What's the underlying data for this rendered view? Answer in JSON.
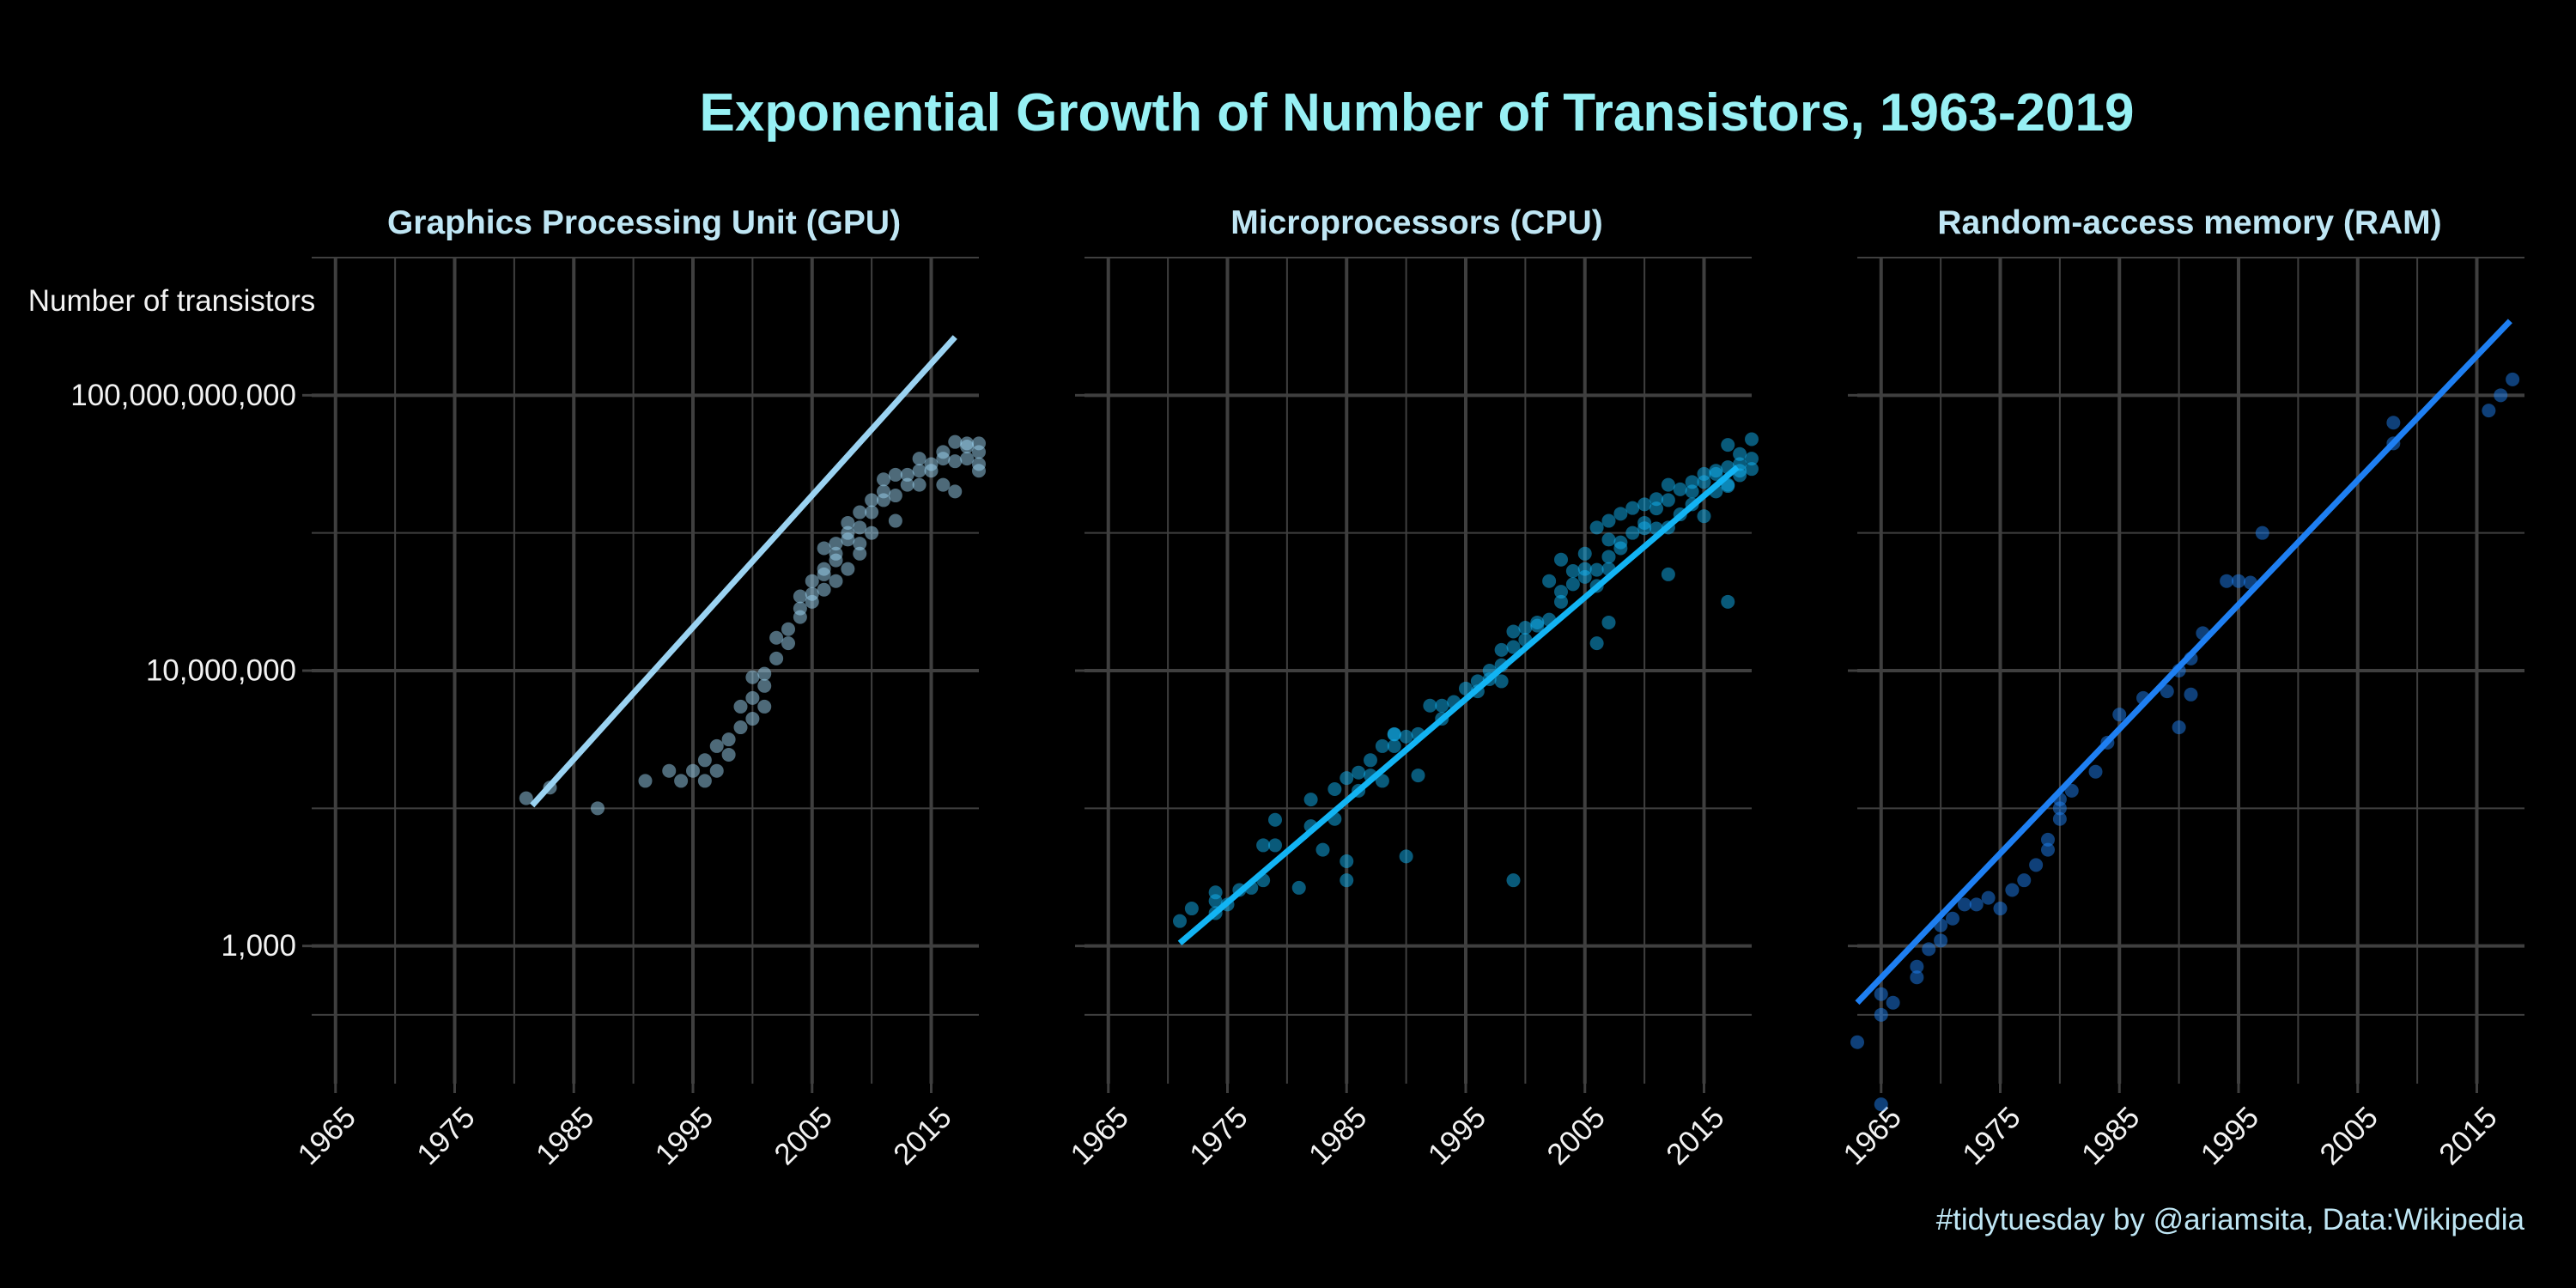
{
  "title": "Exponential Growth of Number of Transistors, 1963-2019",
  "ylabel": "Number of transistors",
  "caption": "#tidytuesday by @ariamsita, Data:Wikipedia",
  "colors": {
    "background": "#000000",
    "grid": "#3F3F3F",
    "title": "#97F0F4",
    "panel_title": "#BFE6F4",
    "axis_text": "#F2F2F2",
    "gpu": "#9BD3F2",
    "cpu": "#12B4F4",
    "ram": "#1E7FF2"
  },
  "chart_data": [
    {
      "type": "scatter",
      "title": "Graphics Processing Unit (GPU)",
      "xlabel": "",
      "ylabel": "Number of transistors",
      "y_scale": "log10",
      "xlim": [
        1963,
        2019
      ],
      "ylim": [
        10,
        10000000000000
      ],
      "x_ticks": [
        1965,
        1975,
        1985,
        1995,
        2005,
        2015
      ],
      "y_ticks": [
        1000,
        10000000,
        100000000000
      ],
      "y_tick_labels": [
        "1,000",
        "10,000,000",
        "100,000,000,000"
      ],
      "grid": true,
      "color": "#9BD3F2",
      "trend_line": {
        "x": [
          1981.5,
          2017.0
        ],
        "y": [
          110000,
          700000000000
        ]
      },
      "points": [
        [
          1981,
          140000
        ],
        [
          1983,
          200000
        ],
        [
          1987,
          100000
        ],
        [
          1991,
          250000
        ],
        [
          1993,
          350000
        ],
        [
          1994,
          250000
        ],
        [
          1995,
          350000
        ],
        [
          1996,
          500000
        ],
        [
          1996,
          250000
        ],
        [
          1997,
          800000
        ],
        [
          1997,
          350000
        ],
        [
          1998,
          1000000
        ],
        [
          1998,
          600000
        ],
        [
          1999,
          1500000
        ],
        [
          1999,
          3000000
        ],
        [
          2000,
          4000000
        ],
        [
          2000,
          8000000
        ],
        [
          2000,
          2000000
        ],
        [
          2001,
          9000000
        ],
        [
          2001,
          6000000
        ],
        [
          2001,
          3000000
        ],
        [
          2002,
          15000000
        ],
        [
          2002,
          30000000
        ],
        [
          2003,
          40000000
        ],
        [
          2003,
          25000000
        ],
        [
          2004,
          60000000
        ],
        [
          2004,
          120000000
        ],
        [
          2004,
          80000000
        ],
        [
          2005,
          200000000
        ],
        [
          2005,
          130000000
        ],
        [
          2005,
          100000000
        ],
        [
          2006,
          300000000
        ],
        [
          2006,
          600000000
        ],
        [
          2006,
          250000000
        ],
        [
          2006,
          150000000
        ],
        [
          2007,
          700000000
        ],
        [
          2007,
          500000000
        ],
        [
          2007,
          400000000
        ],
        [
          2007,
          200000000
        ],
        [
          2008,
          1000000000
        ],
        [
          2008,
          1400000000
        ],
        [
          2008,
          800000000
        ],
        [
          2008,
          300000000
        ],
        [
          2009,
          2000000000
        ],
        [
          2009,
          700000000
        ],
        [
          2009,
          500000000
        ],
        [
          2009,
          1200000000
        ],
        [
          2010,
          3000000000
        ],
        [
          2010,
          2000000000
        ],
        [
          2010,
          1000000000
        ],
        [
          2011,
          4000000000
        ],
        [
          2011,
          3000000000
        ],
        [
          2011,
          6000000000
        ],
        [
          2012,
          7000000000
        ],
        [
          2012,
          3500000000
        ],
        [
          2012,
          1500000000
        ],
        [
          2013,
          5000000000
        ],
        [
          2013,
          7000000000
        ],
        [
          2014,
          8000000000
        ],
        [
          2014,
          12000000000
        ],
        [
          2014,
          5000000000
        ],
        [
          2015,
          10000000000
        ],
        [
          2015,
          8000000000
        ],
        [
          2016,
          15000000000
        ],
        [
          2016,
          12000000000
        ],
        [
          2016,
          5000000000
        ],
        [
          2017,
          21000000000
        ],
        [
          2017,
          11000000000
        ],
        [
          2017,
          4000000000
        ],
        [
          2018,
          20000000000
        ],
        [
          2018,
          12000000000
        ],
        [
          2018,
          18000000000
        ],
        [
          2019,
          10000000000
        ],
        [
          2019,
          15000000000
        ],
        [
          2019,
          8000000000
        ],
        [
          2019,
          20000000000
        ]
      ]
    },
    {
      "type": "scatter",
      "title": "Microprocessors (CPU)",
      "xlabel": "",
      "ylabel": "",
      "y_scale": "log10",
      "xlim": [
        1963,
        2019
      ],
      "ylim": [
        10,
        10000000000000
      ],
      "x_ticks": [
        1965,
        1975,
        1985,
        1995,
        2005,
        2015
      ],
      "y_ticks": [
        1000,
        10000000,
        100000000000
      ],
      "grid": true,
      "color": "#12B4F4",
      "trend_line": {
        "x": [
          1971.0,
          2017.8
        ],
        "y": [
          1100,
          9000000000
        ]
      },
      "points": [
        [
          1971,
          2300
        ],
        [
          1972,
          3500
        ],
        [
          1974,
          4500
        ],
        [
          1974,
          6000
        ],
        [
          1974,
          3000
        ],
        [
          1975,
          4000
        ],
        [
          1976,
          6500
        ],
        [
          1977,
          7000
        ],
        [
          1978,
          9000
        ],
        [
          1978,
          29000
        ],
        [
          1979,
          29000
        ],
        [
          1979,
          68000
        ],
        [
          1981,
          7000
        ],
        [
          1982,
          55000
        ],
        [
          1982,
          134000
        ],
        [
          1983,
          25000
        ],
        [
          1984,
          190000
        ],
        [
          1984,
          70000
        ],
        [
          1985,
          275000
        ],
        [
          1985,
          9000
        ],
        [
          1985,
          17000
        ],
        [
          1986,
          180000
        ],
        [
          1986,
          330000
        ],
        [
          1987,
          500000
        ],
        [
          1987,
          300000
        ],
        [
          1988,
          250000
        ],
        [
          1988,
          800000
        ],
        [
          1989,
          1200000
        ],
        [
          1989,
          800000
        ],
        [
          1989,
          1180000
        ],
        [
          1990,
          20000
        ],
        [
          1990,
          1100000
        ],
        [
          1991,
          1200000
        ],
        [
          1991,
          300000
        ],
        [
          1992,
          3100000
        ],
        [
          1993,
          3100000
        ],
        [
          1993,
          2000000
        ],
        [
          1994,
          3500000
        ],
        [
          1995,
          5500000
        ],
        [
          1996,
          7000000
        ],
        [
          1996,
          5000000
        ],
        [
          1997,
          10000000
        ],
        [
          1997,
          7500000
        ],
        [
          1998,
          7000000
        ],
        [
          1998,
          20000000
        ],
        [
          1998,
          12000000
        ],
        [
          1999,
          37000000
        ],
        [
          1999,
          9000
        ],
        [
          1999,
          22000000
        ],
        [
          2000,
          42000000
        ],
        [
          2000,
          28000000
        ],
        [
          2001,
          45000000
        ],
        [
          2001,
          50000000
        ],
        [
          2002,
          200000000
        ],
        [
          2002,
          55000000
        ],
        [
          2003,
          410000000
        ],
        [
          2003,
          100000000
        ],
        [
          2003,
          140000000
        ],
        [
          2004,
          180000000
        ],
        [
          2004,
          280000000
        ],
        [
          2005,
          230000000
        ],
        [
          2005,
          300000000
        ],
        [
          2005,
          500000000
        ],
        [
          2006,
          291000000
        ],
        [
          2006,
          1200000000
        ],
        [
          2006,
          170000000
        ],
        [
          2006,
          25000000
        ],
        [
          2007,
          800000000
        ],
        [
          2007,
          450000000
        ],
        [
          2007,
          1500000000
        ],
        [
          2007,
          50000000
        ],
        [
          2007,
          300000000
        ],
        [
          2008,
          1900000000
        ],
        [
          2008,
          730000000
        ],
        [
          2008,
          600000000
        ],
        [
          2009,
          1000000000
        ],
        [
          2009,
          2300000000
        ],
        [
          2010,
          1170000000
        ],
        [
          2010,
          1400000000
        ],
        [
          2010,
          2600000000
        ],
        [
          2011,
          2270000000
        ],
        [
          2011,
          1160000000
        ],
        [
          2011,
          3100000000
        ],
        [
          2012,
          1200000000
        ],
        [
          2012,
          3000000000
        ],
        [
          2012,
          5000000000
        ],
        [
          2012,
          250000000
        ],
        [
          2013,
          1860000000
        ],
        [
          2013,
          4300000000
        ],
        [
          2014,
          2600000000
        ],
        [
          2014,
          5500000000
        ],
        [
          2014,
          4000000000
        ],
        [
          2015,
          1750000000
        ],
        [
          2015,
          5500000000
        ],
        [
          2015,
          7200000000
        ],
        [
          2016,
          7200000000
        ],
        [
          2016,
          4000000000
        ],
        [
          2016,
          8000000000
        ],
        [
          2017,
          4800000000
        ],
        [
          2017,
          9000000000
        ],
        [
          2017,
          19000000000
        ],
        [
          2017,
          5000000000
        ],
        [
          2017,
          100000000
        ],
        [
          2018,
          8000000000
        ],
        [
          2018,
          10000000000
        ],
        [
          2018,
          6900000000
        ],
        [
          2018,
          14000000000
        ],
        [
          2019,
          23000000000
        ],
        [
          2019,
          12000000000
        ],
        [
          2019,
          8500000000
        ]
      ]
    },
    {
      "type": "scatter",
      "title": "Random-access memory (RAM)",
      "xlabel": "",
      "ylabel": "",
      "y_scale": "log10",
      "xlim": [
        1963,
        2019
      ],
      "ylim": [
        10,
        10000000000000
      ],
      "x_ticks": [
        1965,
        1975,
        1985,
        1995,
        2005,
        2015
      ],
      "y_ticks": [
        1000,
        10000000,
        100000000000
      ],
      "grid": true,
      "color": "#1E7FF2",
      "trend_line": {
        "x": [
          1963.0,
          2017.8
        ],
        "y": [
          150,
          1200000000000
        ]
      },
      "points": [
        [
          1963,
          40
        ],
        [
          1965,
          5
        ],
        [
          1965,
          100
        ],
        [
          1965,
          200
        ],
        [
          1966,
          150
        ],
        [
          1968,
          350
        ],
        [
          1968,
          500
        ],
        [
          1969,
          900
        ],
        [
          1970,
          1200
        ],
        [
          1970,
          2000
        ],
        [
          1971,
          2500
        ],
        [
          1972,
          4000
        ],
        [
          1973,
          4000
        ],
        [
          1974,
          5000
        ],
        [
          1975,
          3500
        ],
        [
          1976,
          6500
        ],
        [
          1977,
          9000
        ],
        [
          1978,
          15000
        ],
        [
          1979,
          25000
        ],
        [
          1979,
          35000
        ],
        [
          1980,
          70000
        ],
        [
          1980,
          135000
        ],
        [
          1980,
          100000
        ],
        [
          1981,
          180000
        ],
        [
          1983,
          340000
        ],
        [
          1984,
          900000
        ],
        [
          1985,
          2300000
        ],
        [
          1987,
          4000000
        ],
        [
          1989,
          5000000
        ],
        [
          1990,
          1500000
        ],
        [
          1990,
          10000000
        ],
        [
          1991,
          15000000
        ],
        [
          1991,
          4500000
        ],
        [
          1992,
          35000000
        ],
        [
          1994,
          200000000
        ],
        [
          1995,
          200000000
        ],
        [
          1996,
          190000000
        ],
        [
          1997,
          1000000000
        ],
        [
          2008,
          20000000000
        ],
        [
          2008,
          40000000000
        ],
        [
          2016,
          60000000000
        ],
        [
          2017,
          100000000000
        ],
        [
          2018,
          170000000000
        ]
      ]
    }
  ]
}
